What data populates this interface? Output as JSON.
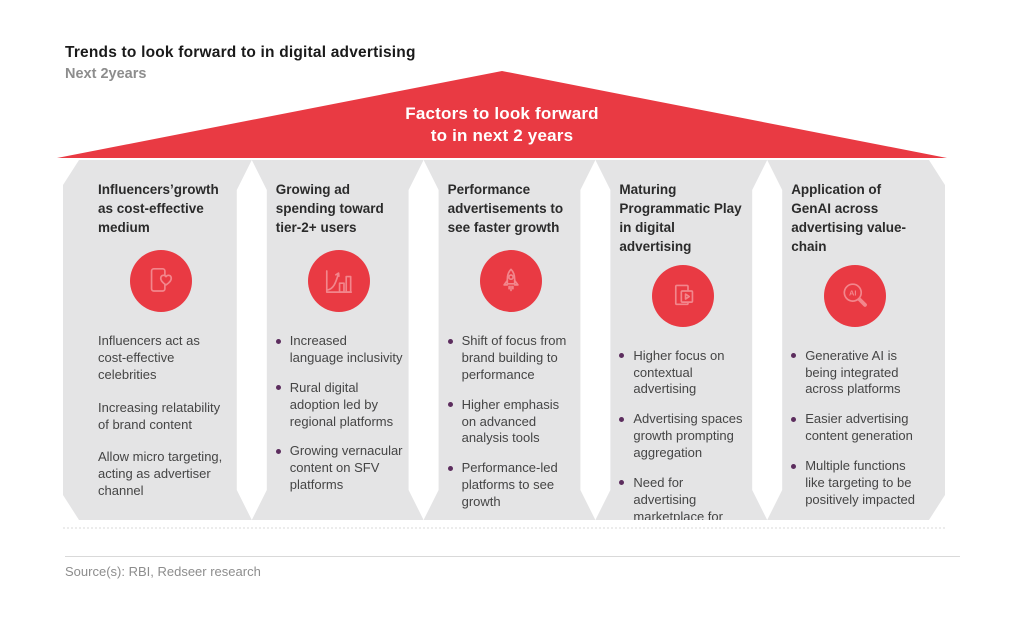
{
  "header": {
    "title": "Trends to look forward to in digital advertising",
    "subtitle": "Next 2years"
  },
  "roof": {
    "line1": "Factors to look forward",
    "line2": "to in next 2 years"
  },
  "columns": [
    {
      "title": "Influencers’growth as cost-effective medium",
      "icon": "influencer-heart-icon",
      "bullets": false,
      "points": [
        "Influencers act as cost-effective celebrities",
        "Increasing relatability of brand content",
        "Allow micro targeting, acting as advertiser channel"
      ]
    },
    {
      "title": "Growing ad spending toward tier-2+ users",
      "icon": "growth-chart-icon",
      "bullets": true,
      "points": [
        "Increased language inclusivity",
        "Rural digital adoption led by regional platforms",
        "Growing vernacular content on SFV platforms"
      ]
    },
    {
      "title": "Performance advertisements to see faster growth",
      "icon": "rocket-icon",
      "bullets": true,
      "points": [
        "Shift of focus from brand building to performance",
        "Higher emphasis on advanced analysis tools",
        "Performance-led platforms to see growth"
      ]
    },
    {
      "title": "Maturing Programmatic Play in digital advertising",
      "icon": "programmatic-play-icon",
      "bullets": true,
      "points": [
        "Higher focus on contextual advertising",
        "Advertising spaces growth prompting aggregation",
        "Need for advertising marketplace for advertisers"
      ]
    },
    {
      "title": "Application of GenAI across advertising value-chain",
      "icon": "genai-search-icon",
      "bullets": true,
      "points": [
        "Generative AI is being integrated across platforms",
        "Easier advertising content generation",
        "Multiple functions like targeting to be positively impacted"
      ]
    }
  ],
  "icons": {
    "genai_label": "AI"
  },
  "footer": {
    "source": "Source(s): RBI, Redseer research"
  },
  "colors": {
    "accent_red": "#E93A43",
    "pillar_gray": "#E4E4E5",
    "bullet_purple": "#5C2D5E",
    "icon_stroke": "#F2868C",
    "text_dark": "#2B2B2B",
    "text_body": "#454545",
    "text_muted": "#8D8D8D",
    "divider": "#D9D9D9"
  }
}
